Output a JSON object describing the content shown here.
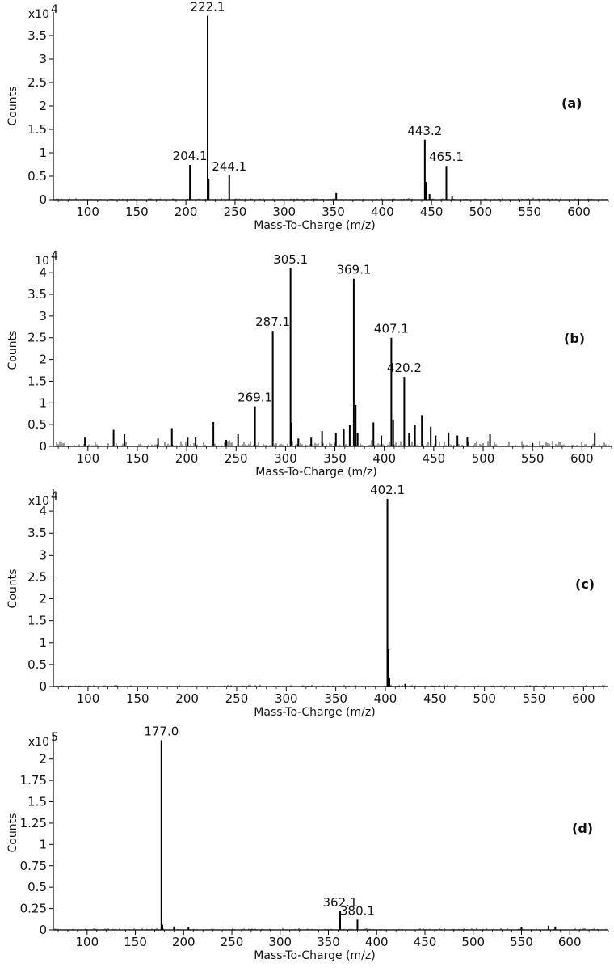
{
  "chart_data": [
    {
      "type": "bar",
      "panel_label": "(a)",
      "scale_base": "x10",
      "scale_exp": "4",
      "xlabel": "Mass-To-Charge (m/z)",
      "ylabel": "Counts",
      "xlim": [
        65,
        630
      ],
      "ylim": [
        0,
        4.0
      ],
      "y_ticks": [
        0,
        0.5,
        1,
        1.5,
        2,
        2.5,
        3,
        3.5
      ],
      "y_tick_labels": [
        "0",
        "0.5",
        "1",
        "1.5",
        "2",
        "2.5",
        "3",
        "3.5"
      ],
      "x_ticks": [
        100,
        150,
        200,
        250,
        300,
        350,
        400,
        450,
        500,
        550,
        600
      ],
      "x_tick_labels": [
        "100",
        "150",
        "200",
        "250",
        "300",
        "350",
        "400",
        "450",
        "500",
        "550",
        "600"
      ],
      "peaks": [
        {
          "mz": 204.1,
          "value": 0.74,
          "label": "204.1"
        },
        {
          "mz": 222.1,
          "value": 3.92,
          "label": "222.1"
        },
        {
          "mz": 223.1,
          "value": 0.45,
          "label": ""
        },
        {
          "mz": 244.1,
          "value": 0.52,
          "label": "244.1"
        },
        {
          "mz": 353.0,
          "value": 0.14,
          "label": ""
        },
        {
          "mz": 443.2,
          "value": 1.28,
          "label": "443.2"
        },
        {
          "mz": 444.2,
          "value": 0.38,
          "label": ""
        },
        {
          "mz": 448.0,
          "value": 0.12,
          "label": ""
        },
        {
          "mz": 465.1,
          "value": 0.72,
          "label": "465.1"
        },
        {
          "mz": 471.0,
          "value": 0.08,
          "label": ""
        }
      ]
    },
    {
      "type": "bar",
      "panel_label": "(b)",
      "scale_base": "10",
      "scale_exp": "4",
      "xlabel": "Mass-To-Charge (m/z)",
      "ylabel": "Counts",
      "xlim": [
        65,
        630
      ],
      "ylim": [
        0,
        4.45
      ],
      "y_ticks": [
        0,
        0.5,
        1,
        1.5,
        2,
        2.5,
        3,
        3.5,
        4
      ],
      "y_tick_labels": [
        "0",
        "0.5",
        "1",
        "1.5",
        "2",
        "2.5",
        "3",
        "3.5",
        "4"
      ],
      "x_ticks": [
        100,
        150,
        200,
        250,
        300,
        350,
        400,
        450,
        500,
        550,
        600
      ],
      "x_tick_labels": [
        "100",
        "150",
        "200",
        "250",
        "300",
        "350",
        "400",
        "450",
        "500",
        "550",
        "600"
      ],
      "peaks": [
        {
          "mz": 97,
          "value": 0.2,
          "label": ""
        },
        {
          "mz": 126,
          "value": 0.38,
          "label": ""
        },
        {
          "mz": 137,
          "value": 0.28,
          "label": ""
        },
        {
          "mz": 171,
          "value": 0.18,
          "label": ""
        },
        {
          "mz": 185,
          "value": 0.42,
          "label": ""
        },
        {
          "mz": 201,
          "value": 0.2,
          "label": ""
        },
        {
          "mz": 209,
          "value": 0.22,
          "label": ""
        },
        {
          "mz": 227,
          "value": 0.56,
          "label": ""
        },
        {
          "mz": 240,
          "value": 0.15,
          "label": ""
        },
        {
          "mz": 252,
          "value": 0.28,
          "label": ""
        },
        {
          "mz": 269.1,
          "value": 0.92,
          "label": "269.1"
        },
        {
          "mz": 287.1,
          "value": 2.66,
          "label": "287.1"
        },
        {
          "mz": 305.1,
          "value": 4.1,
          "label": "305.1"
        },
        {
          "mz": 306.1,
          "value": 0.55,
          "label": ""
        },
        {
          "mz": 313,
          "value": 0.18,
          "label": ""
        },
        {
          "mz": 326,
          "value": 0.2,
          "label": ""
        },
        {
          "mz": 337,
          "value": 0.35,
          "label": ""
        },
        {
          "mz": 351,
          "value": 0.3,
          "label": ""
        },
        {
          "mz": 359,
          "value": 0.4,
          "label": ""
        },
        {
          "mz": 365,
          "value": 0.5,
          "label": ""
        },
        {
          "mz": 369.1,
          "value": 3.86,
          "label": "369.1"
        },
        {
          "mz": 371,
          "value": 0.95,
          "label": ""
        },
        {
          "mz": 373,
          "value": 0.3,
          "label": ""
        },
        {
          "mz": 389,
          "value": 0.55,
          "label": ""
        },
        {
          "mz": 397,
          "value": 0.25,
          "label": ""
        },
        {
          "mz": 407.1,
          "value": 2.5,
          "label": "407.1"
        },
        {
          "mz": 409,
          "value": 0.62,
          "label": ""
        },
        {
          "mz": 420.2,
          "value": 1.6,
          "label": "420.2"
        },
        {
          "mz": 425,
          "value": 0.3,
          "label": ""
        },
        {
          "mz": 431,
          "value": 0.5,
          "label": ""
        },
        {
          "mz": 438,
          "value": 0.72,
          "label": ""
        },
        {
          "mz": 447,
          "value": 0.45,
          "label": ""
        },
        {
          "mz": 452,
          "value": 0.25,
          "label": ""
        },
        {
          "mz": 465,
          "value": 0.32,
          "label": ""
        },
        {
          "mz": 474,
          "value": 0.25,
          "label": ""
        },
        {
          "mz": 484,
          "value": 0.22,
          "label": ""
        },
        {
          "mz": 507,
          "value": 0.28,
          "label": ""
        },
        {
          "mz": 550,
          "value": 0.08,
          "label": ""
        },
        {
          "mz": 613,
          "value": 0.32,
          "label": ""
        }
      ]
    },
    {
      "type": "bar",
      "panel_label": "(c)",
      "scale_base": "x10",
      "scale_exp": "4",
      "xlabel": "Mass-To-Charge (m/z)",
      "ylabel": "Counts",
      "xlim": [
        65,
        625
      ],
      "ylim": [
        0,
        4.5
      ],
      "y_ticks": [
        0,
        0.5,
        1,
        1.5,
        2,
        2.5,
        3,
        3.5,
        4
      ],
      "y_tick_labels": [
        "0",
        "0.5",
        "1",
        "1.5",
        "2",
        "2.5",
        "3",
        "3.5",
        "4"
      ],
      "x_ticks": [
        100,
        150,
        200,
        250,
        300,
        350,
        400,
        450,
        500,
        550,
        600
      ],
      "x_tick_labels": [
        "100",
        "150",
        "200",
        "250",
        "300",
        "350",
        "400",
        "450",
        "500",
        "550",
        "600"
      ],
      "peaks": [
        {
          "mz": 402.1,
          "value": 4.28,
          "label": "402.1"
        },
        {
          "mz": 403.1,
          "value": 0.85,
          "label": ""
        },
        {
          "mz": 404.1,
          "value": 0.2,
          "label": ""
        },
        {
          "mz": 420,
          "value": 0.06,
          "label": ""
        }
      ]
    },
    {
      "type": "bar",
      "panel_label": "(d)",
      "scale_base": "x10",
      "scale_exp": "5",
      "xlabel": "Mass-To-Charge (m/z)",
      "ylabel": "Counts",
      "xlim": [
        65,
        640
      ],
      "ylim": [
        0,
        2.3
      ],
      "y_ticks": [
        0,
        0.25,
        0.5,
        0.75,
        1,
        1.25,
        1.5,
        1.75,
        2
      ],
      "y_tick_labels": [
        "0",
        "0.25",
        "0.5",
        "0.75",
        "1",
        "1.25",
        "1.5",
        "1.75",
        "2"
      ],
      "x_ticks": [
        100,
        150,
        200,
        250,
        300,
        350,
        400,
        450,
        500,
        550,
        600
      ],
      "x_tick_labels": [
        "100",
        "150",
        "200",
        "250",
        "300",
        "350",
        "400",
        "450",
        "500",
        "550",
        "600"
      ],
      "peaks": [
        {
          "mz": 177.0,
          "value": 2.22,
          "label": "177.0"
        },
        {
          "mz": 178.0,
          "value": 0.06,
          "label": ""
        },
        {
          "mz": 190,
          "value": 0.04,
          "label": ""
        },
        {
          "mz": 205,
          "value": 0.03,
          "label": ""
        },
        {
          "mz": 362.1,
          "value": 0.22,
          "label": "362.1"
        },
        {
          "mz": 380.1,
          "value": 0.12,
          "label": "380.1"
        },
        {
          "mz": 550,
          "value": 0.03,
          "label": ""
        },
        {
          "mz": 578,
          "value": 0.05,
          "label": ""
        },
        {
          "mz": 585,
          "value": 0.04,
          "label": ""
        }
      ]
    }
  ]
}
